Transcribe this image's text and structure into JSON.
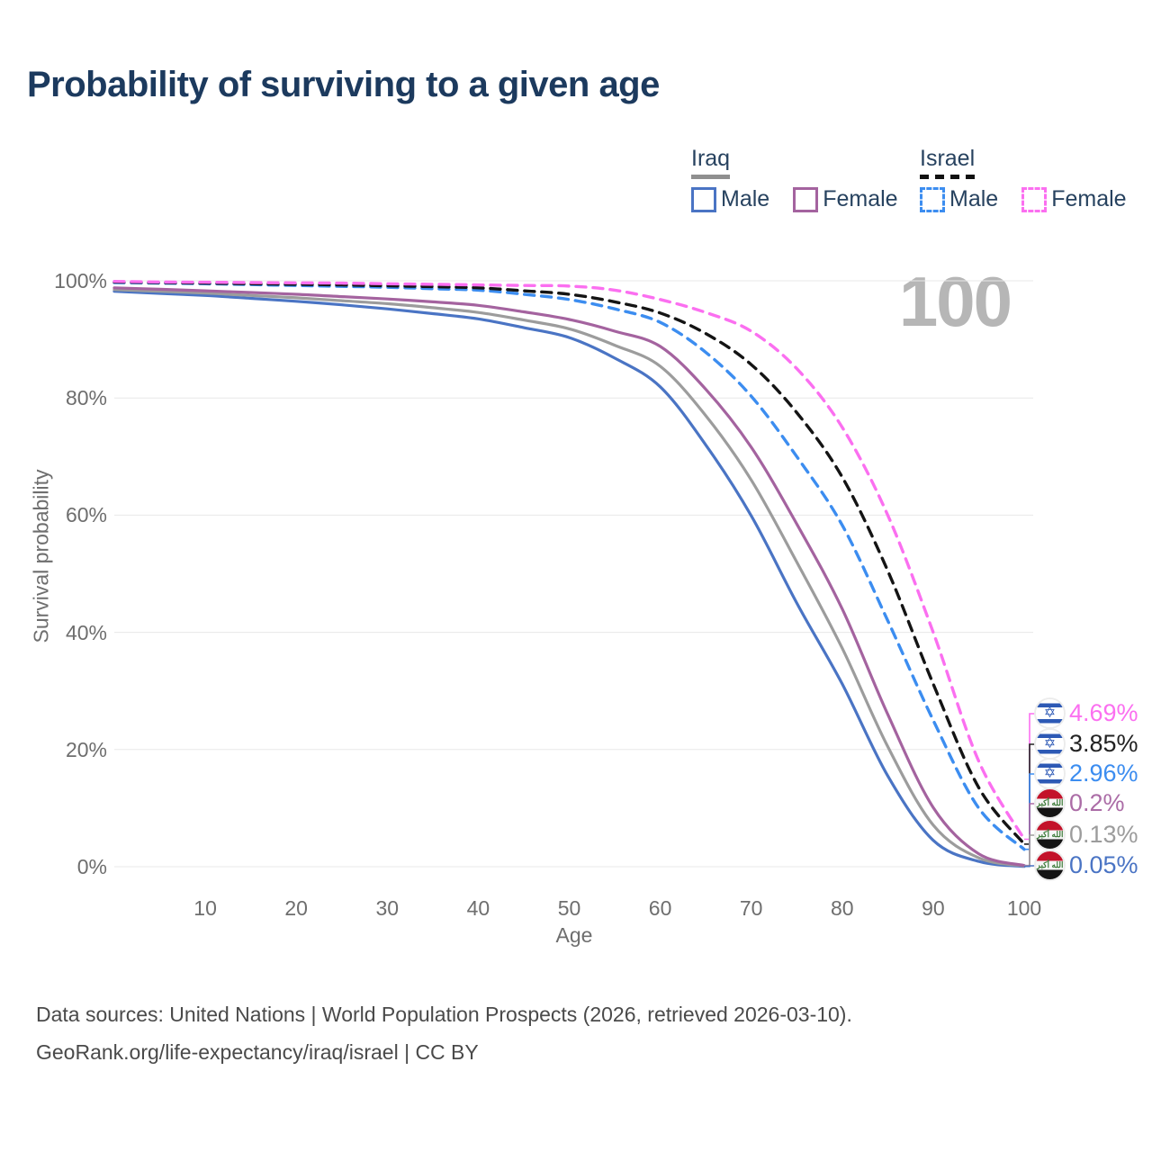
{
  "title": "Probability of surviving to a given age",
  "watermark_age": "100",
  "legend": {
    "groups": [
      {
        "country": "Iraq",
        "line_style": "solid",
        "underline_color": "#8f8f8f",
        "items": [
          {
            "label": "Male",
            "color": "#4a74c4",
            "dash": false
          },
          {
            "label": "Female",
            "color": "#a4639f",
            "dash": false
          }
        ]
      },
      {
        "country": "Israel",
        "line_style": "dashed",
        "underline_color": "#111111",
        "items": [
          {
            "label": "Male",
            "color": "#3c8df0",
            "dash": true
          },
          {
            "label": "Female",
            "color": "#fb6ff0",
            "dash": true
          }
        ]
      }
    ]
  },
  "chart_data": {
    "type": "line",
    "title": "Probability of surviving to a given age",
    "xlabel": "Age",
    "ylabel": "Survival probability",
    "xlim": [
      0,
      100
    ],
    "ylim": [
      0,
      100
    ],
    "grid": true,
    "x_ticks": [
      10,
      20,
      30,
      40,
      50,
      60,
      70,
      80,
      90,
      100
    ],
    "y_ticks": [
      {
        "pct": 0,
        "label": "0%"
      },
      {
        "pct": 20,
        "label": "20%"
      },
      {
        "pct": 40,
        "label": "40%"
      },
      {
        "pct": 60,
        "label": "60%"
      },
      {
        "pct": 80,
        "label": "80%"
      },
      {
        "pct": 100,
        "label": "100%"
      }
    ],
    "x": [
      0,
      5,
      10,
      15,
      20,
      25,
      30,
      35,
      40,
      45,
      50,
      55,
      60,
      65,
      70,
      75,
      80,
      85,
      90,
      95,
      100
    ],
    "series": [
      {
        "id": "iraq-male",
        "country": "Iraq",
        "sex": "Male",
        "color": "#4a74c4",
        "dash": false,
        "end_label": "0.05%",
        "values": [
          98.2,
          97.85,
          97.5,
          97.0,
          96.5,
          95.9,
          95.2,
          94.4,
          93.5,
          92.0,
          90.3,
          86.8,
          81.9,
          72.0,
          59.9,
          45.0,
          31.2,
          15.5,
          4.5,
          0.9,
          0.05
        ]
      },
      {
        "id": "iraq-both",
        "country": "Iraq",
        "sex": "Both sexes",
        "color": "#9c9c9c",
        "dash": false,
        "end_label": "0.13%",
        "values": [
          98.5,
          98.2,
          97.9,
          97.5,
          97.1,
          96.6,
          96.1,
          95.4,
          94.6,
          93.3,
          91.8,
          89.0,
          85.4,
          77.0,
          66.0,
          52.0,
          37.3,
          20.5,
          7.1,
          1.5,
          0.13
        ]
      },
      {
        "id": "iraq-female",
        "country": "Iraq",
        "sex": "Female",
        "color": "#a4639f",
        "dash": false,
        "end_label": "0.2%",
        "values": [
          98.8,
          98.55,
          98.3,
          98.0,
          97.7,
          97.3,
          96.9,
          96.4,
          95.8,
          94.7,
          93.4,
          91.4,
          88.8,
          81.5,
          71.6,
          58.5,
          44.0,
          26.0,
          10.1,
          2.2,
          0.2
        ]
      },
      {
        "id": "israel-male",
        "country": "Israel",
        "sex": "Male",
        "color": "#3c8df0",
        "dash": true,
        "end_label": "2.96%",
        "values": [
          99.7,
          99.6,
          99.5,
          99.35,
          99.2,
          99.05,
          98.9,
          98.65,
          98.4,
          97.7,
          96.8,
          95.2,
          92.9,
          87.8,
          80.3,
          70.0,
          58.3,
          42.0,
          25.0,
          10.0,
          2.96
        ]
      },
      {
        "id": "israel-both",
        "country": "Israel",
        "sex": "Both sexes",
        "color": "#141414",
        "dash": true,
        "end_label": "3.85%",
        "values": [
          99.8,
          99.7,
          99.6,
          99.5,
          99.4,
          99.3,
          99.15,
          99.0,
          98.8,
          98.3,
          97.7,
          96.4,
          94.5,
          91.0,
          85.7,
          77.5,
          66.5,
          50.5,
          31.2,
          13.5,
          3.85
        ]
      },
      {
        "id": "israel-female",
        "country": "Israel",
        "sex": "Female",
        "color": "#fb6ff0",
        "dash": true,
        "end_label": "4.69%",
        "values": [
          99.9,
          99.8,
          99.75,
          99.7,
          99.65,
          99.6,
          99.5,
          99.4,
          99.3,
          99.2,
          99.1,
          98.4,
          96.8,
          94.6,
          91.4,
          85.0,
          75.0,
          60.0,
          40.0,
          18.0,
          4.69
        ]
      }
    ]
  },
  "end_labels": [
    {
      "flag": "il",
      "flag_name": "israel-flag-icon",
      "value": "4.69%",
      "color": "#fb6ff0",
      "series": "israel-female"
    },
    {
      "flag": "il",
      "flag_name": "israel-flag-icon",
      "value": "3.85%",
      "color": "#222222",
      "series": "israel-both"
    },
    {
      "flag": "il",
      "flag_name": "israel-flag-icon",
      "value": "2.96%",
      "color": "#3c8df0",
      "series": "israel-male"
    },
    {
      "flag": "iq",
      "flag_name": "iraq-flag-icon",
      "value": "0.2%",
      "color": "#ab6ca6",
      "series": "iraq-female"
    },
    {
      "flag": "iq",
      "flag_name": "iraq-flag-icon",
      "value": "0.13%",
      "color": "#9c9c9c",
      "series": "iraq-both"
    },
    {
      "flag": "iq",
      "flag_name": "iraq-flag-icon",
      "value": "0.05%",
      "color": "#4a74c4",
      "series": "iraq-male"
    }
  ],
  "flag_glyphs": {
    "il_star": "✡",
    "iq_takbir": "الله أكبر"
  },
  "footer": {
    "line1": "Data sources: United Nations | World Population Prospects (2026, retrieved 2026-03-10).",
    "line2": "GeoRank.org/life-expectancy/iraq/israel | CC BY"
  }
}
